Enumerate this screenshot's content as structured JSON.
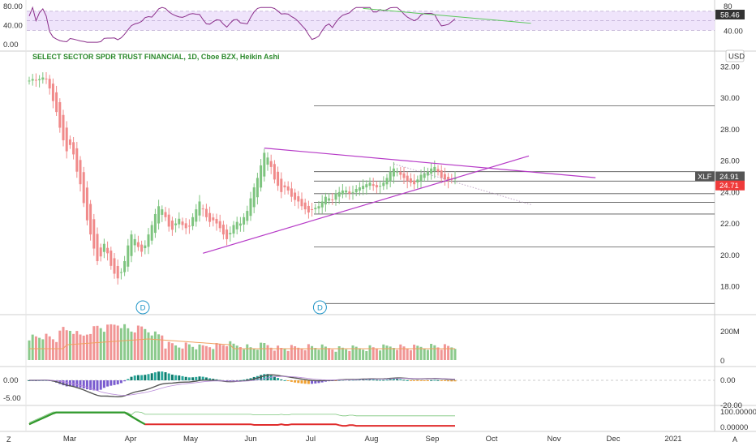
{
  "chart_data": {
    "type": "candlestick",
    "title": "SELECT SECTOR SPDR TRUST FINANCIAL, 1D, Cboe BZX, Heikin Ashi",
    "currency": "USD",
    "price_ticks": [
      "32.00",
      "30.00",
      "28.00",
      "26.00",
      "24.00",
      "22.00",
      "20.00",
      "18.00"
    ],
    "ylim": [
      16.6,
      33.6
    ],
    "x_ticks": [
      "Mar",
      "Apr",
      "May",
      "Jun",
      "Jul",
      "Aug",
      "Sep",
      "Oct",
      "Nov",
      "Dec",
      "2021"
    ],
    "symbol_tag": {
      "symbol": "XLF",
      "value": "24.91"
    },
    "last_price_tag": "24.71",
    "rsi": {
      "ticks": [
        "80.00",
        "40.00",
        "0.00"
      ],
      "right_ticks": [
        "80",
        "40.00"
      ],
      "current": "58.46",
      "band": [
        30,
        70
      ]
    },
    "volume": {
      "ticks": [
        "200M",
        "0"
      ]
    },
    "macd": {
      "ticks": [
        "0.00",
        "-5.00"
      ],
      "right_ticks": [
        "0.00",
        "-20.00"
      ]
    },
    "oscillator": {
      "right_ticks": [
        "100.00000",
        "0.00000"
      ]
    },
    "dividend_markers": [
      "D",
      "D"
    ],
    "corner_labels": {
      "left": "Z",
      "right": "A"
    },
    "closes": [
      31.1,
      31.2,
      31.1,
      31.2,
      31.3,
      31.2,
      30.6,
      29.8,
      29.1,
      28.1,
      27.3,
      26.6,
      27.0,
      26.4,
      25.3,
      24.5,
      23.3,
      22.2,
      21.3,
      20.4,
      19.6,
      19.9,
      20.7,
      20.1,
      19.3,
      18.8,
      18.5,
      18.9,
      19.6,
      20.6,
      21.3,
      21.0,
      20.5,
      20.2,
      20.6,
      21.3,
      21.9,
      22.6,
      23.1,
      22.9,
      22.4,
      21.8,
      21.6,
      22.0,
      22.3,
      21.9,
      21.7,
      21.8,
      22.4,
      22.9,
      23.4,
      22.9,
      22.4,
      22.1,
      22.2,
      22.0,
      21.7,
      21.3,
      21.0,
      21.4,
      21.9,
      22.1,
      22.0,
      22.4,
      22.8,
      23.6,
      24.3,
      24.9,
      25.7,
      26.5,
      26.2,
      25.6,
      24.8,
      24.4,
      24.0,
      24.3,
      24.1,
      23.7,
      23.5,
      23.4,
      23.1,
      22.9,
      22.7,
      22.9,
      23.0,
      23.1,
      23.4,
      23.7,
      23.6,
      23.5,
      23.9,
      24.0,
      24.1,
      24.1,
      23.9,
      24.0,
      24.2,
      24.3,
      24.4,
      24.5,
      24.6,
      24.4,
      24.3,
      24.4,
      24.6,
      24.9,
      25.3,
      25.5,
      25.3,
      25.1,
      24.9,
      24.7,
      24.6,
      24.5,
      24.8,
      25.1,
      25.2,
      25.3,
      25.5,
      25.6,
      25.3,
      24.9,
      24.8,
      24.7,
      24.8,
      24.9
    ],
    "annotations": {
      "horizontal_levels": [
        29.5,
        25.3,
        24.7,
        23.9,
        23.35,
        22.6,
        20.5,
        16.9
      ],
      "triangle_upper": {
        "from": [
          69,
          26.8
        ],
        "to": [
          146,
          24.4
        ]
      },
      "triangle_lower": {
        "from": [
          51,
          20.1
        ],
        "to": [
          130,
          26.3
        ]
      },
      "trend_dotted": {
        "from": [
          107,
          25.8
        ],
        "to": [
          133,
          23.2
        ]
      },
      "rsi_trendline": {
        "from": [
          98,
          76
        ],
        "to": [
          133,
          55
        ]
      }
    }
  }
}
